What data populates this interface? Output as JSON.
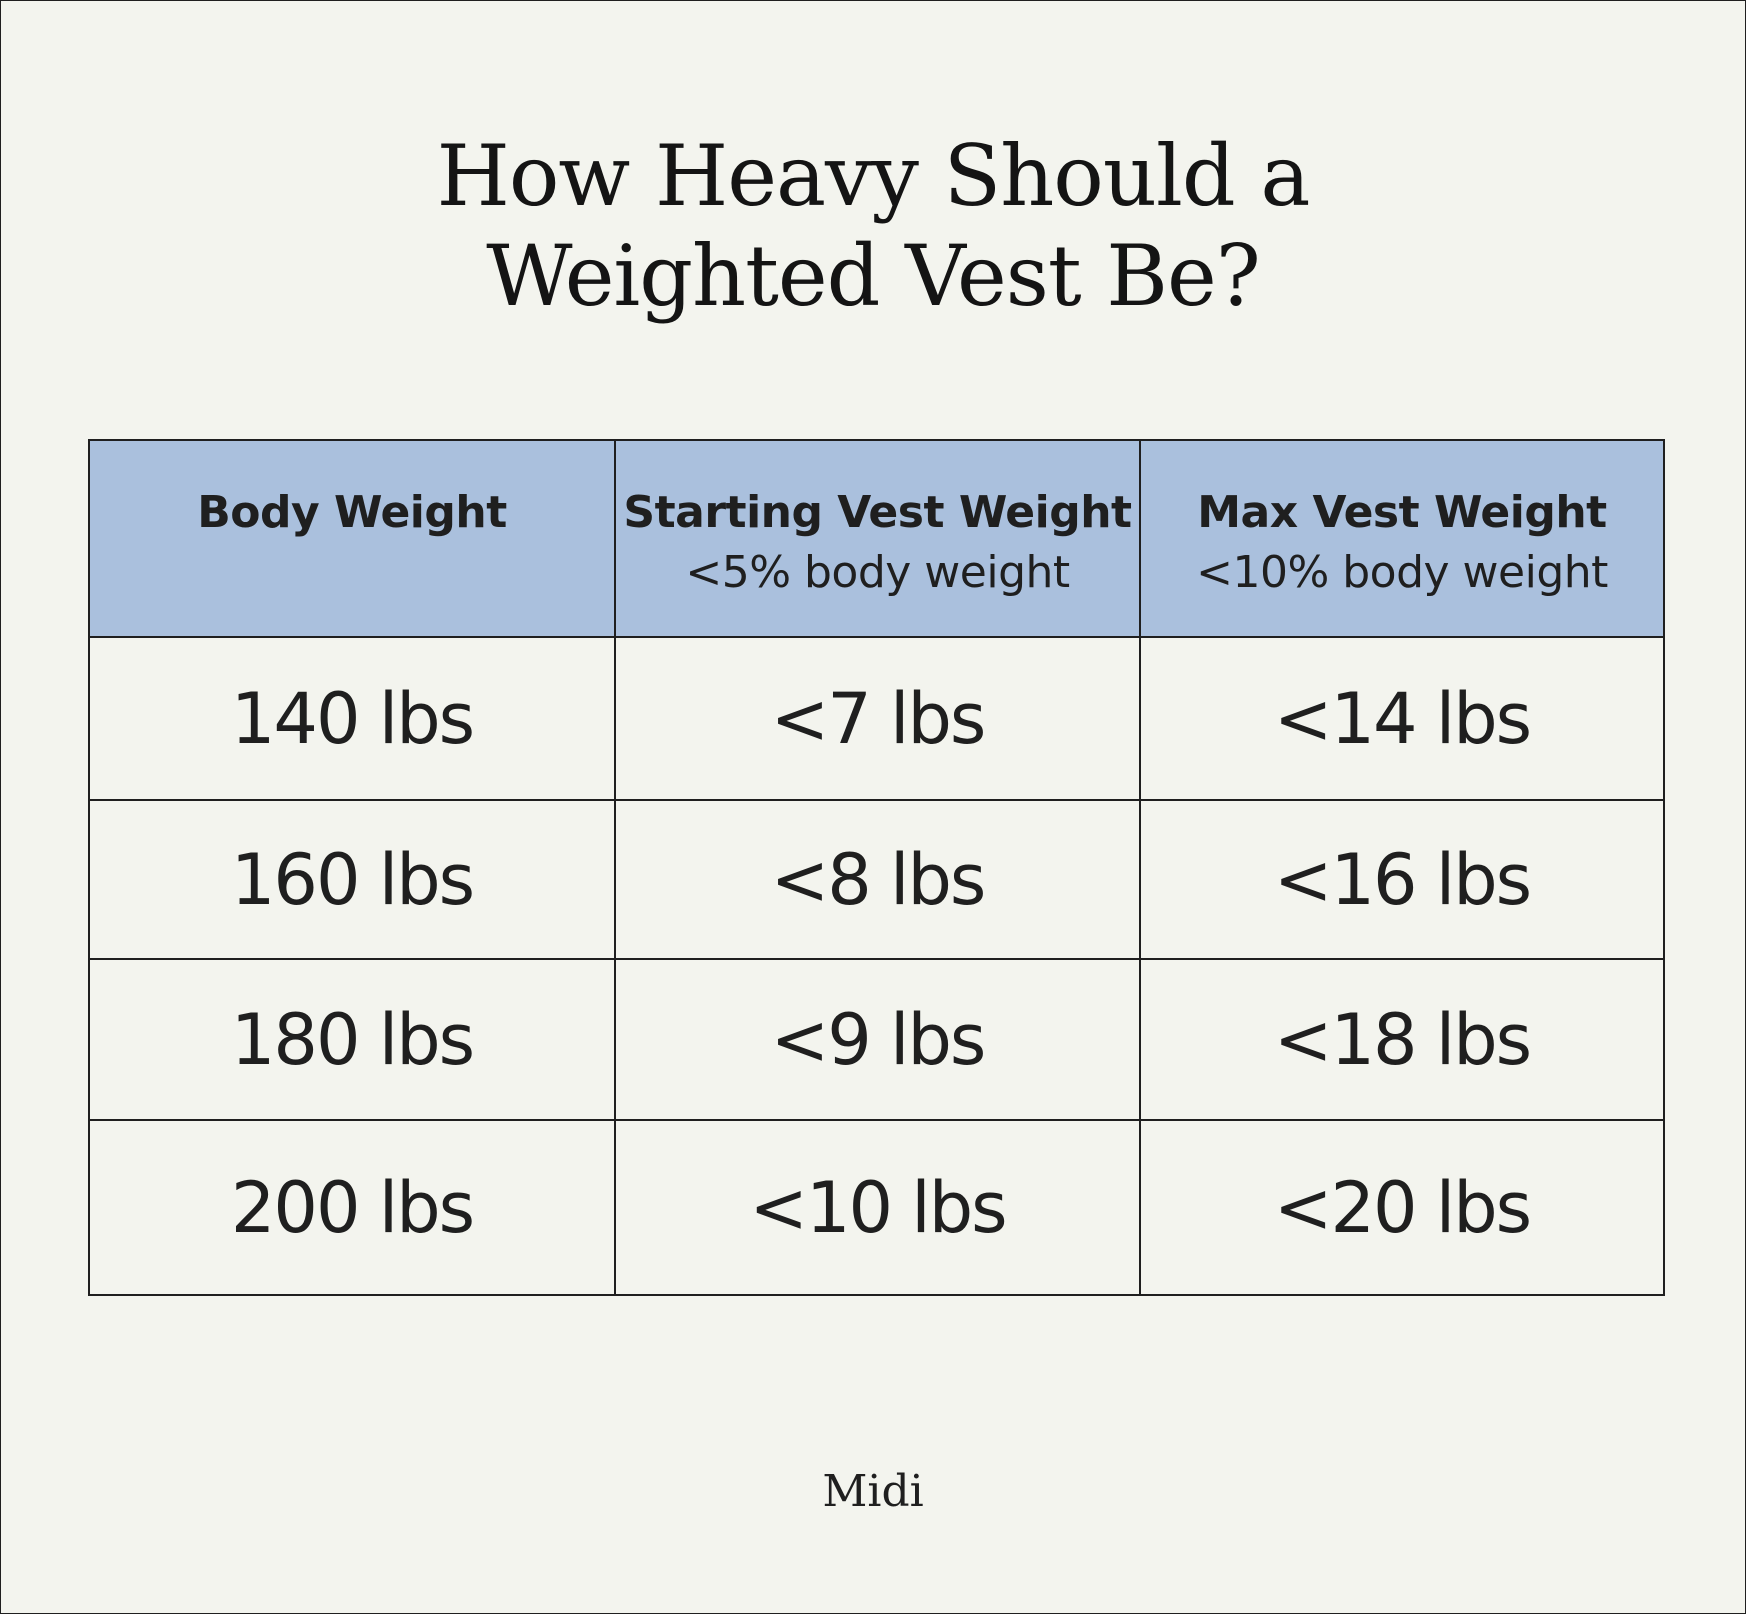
{
  "title": {
    "line1": "How Heavy Should a",
    "line2": "Weighted Vest Be?"
  },
  "chart_data": {
    "type": "table",
    "title": "How Heavy Should a Weighted Vest Be?",
    "columns": [
      {
        "header": "Body Weight",
        "subheader": ""
      },
      {
        "header": "Starting Vest Weight",
        "subheader": "<5% body weight"
      },
      {
        "header": "Max Vest Weight",
        "subheader": "<10% body weight"
      }
    ],
    "rows": [
      [
        "140 lbs",
        "<7 lbs",
        "<14 lbs"
      ],
      [
        "160 lbs",
        "<8 lbs",
        "<16 lbs"
      ],
      [
        "180 lbs",
        "<9 lbs",
        "<18 lbs"
      ],
      [
        "200 lbs",
        "<10 lbs",
        "<20 lbs"
      ]
    ],
    "header_color": "#aac0dd",
    "background_color": "#f3f4ee"
  },
  "brand": "Midi"
}
